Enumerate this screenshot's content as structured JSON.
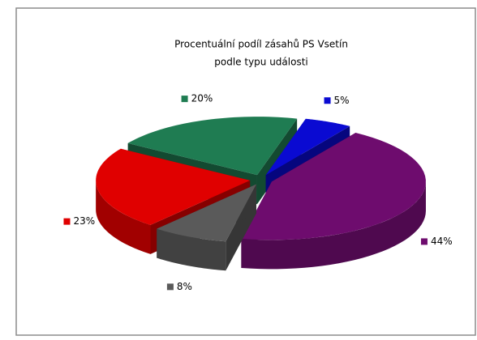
{
  "chart_data": {
    "type": "pie3d",
    "title": [
      "Procentuální podíl zásahů PS Vsetín",
      "podle typu události"
    ],
    "values": [
      5,
      44,
      8,
      23,
      20
    ],
    "value_labels": [
      "5%",
      "44%",
      "8%",
      "23%",
      "20%"
    ],
    "colors": [
      "#0a0ad2",
      "#6e0c6e",
      "#5a5a5a",
      "#e00000",
      "#1f7c52"
    ]
  }
}
